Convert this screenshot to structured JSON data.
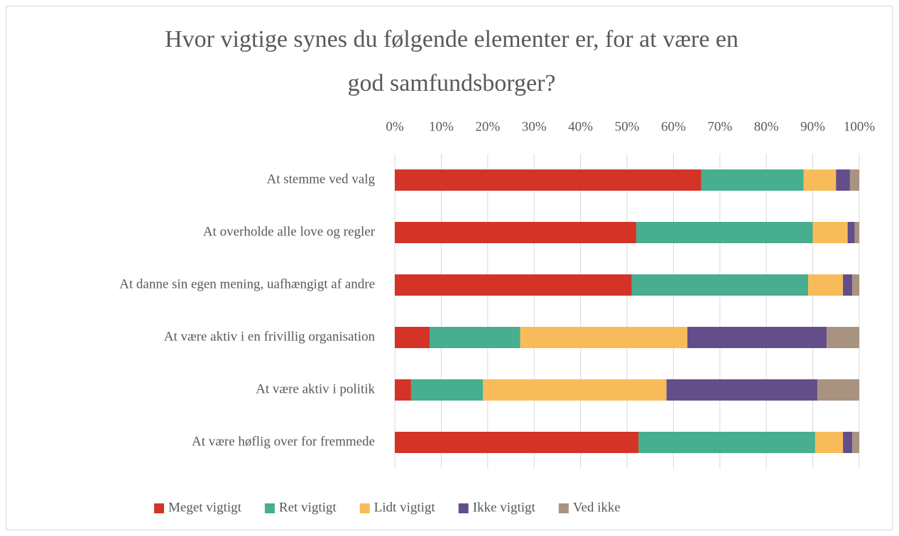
{
  "chart_data": {
    "type": "stacked_barh",
    "title": [
      "Hvor vigtige synes du følgende elementer er, for at være en",
      "god samfundsborger?"
    ],
    "categories": [
      "At stemme ved valg",
      "At overholde alle love og regler",
      "At danne sin egen mening, uafhængigt af andre",
      "At være aktiv i en frivillig organisation",
      "At være aktiv i politik",
      "At være høflig over for fremmede"
    ],
    "series": [
      {
        "name": "Meget vigtigt",
        "color": "#d33427",
        "values": [
          66,
          52,
          51,
          7.5,
          3.5,
          52.5
        ]
      },
      {
        "name": "Ret vigtigt",
        "color": "#47ae8f",
        "values": [
          22,
          38,
          38,
          19.5,
          15.5,
          38
        ]
      },
      {
        "name": "Lidt vigtigt",
        "color": "#f8bb5a",
        "values": [
          7,
          7.5,
          7.5,
          36,
          39.5,
          6
        ]
      },
      {
        "name": "Ikke vigtigt",
        "color": "#634e8a",
        "values": [
          3,
          1.5,
          2,
          30,
          32.5,
          2
        ]
      },
      {
        "name": "Ved ikke",
        "color": "#a89280",
        "values": [
          2,
          1,
          1.5,
          7,
          9,
          1.5
        ]
      }
    ],
    "xlim": [
      0,
      100
    ],
    "xticks": [
      {
        "value": 0,
        "label": "0%"
      },
      {
        "value": 10,
        "label": "10%"
      },
      {
        "value": 20,
        "label": "20%"
      },
      {
        "value": 30,
        "label": "30%"
      },
      {
        "value": 40,
        "label": "40%"
      },
      {
        "value": 50,
        "label": "50%"
      },
      {
        "value": 60,
        "label": "60%"
      },
      {
        "value": 70,
        "label": "70%"
      },
      {
        "value": 80,
        "label": "80%"
      },
      {
        "value": 90,
        "label": "90%"
      },
      {
        "value": 100,
        "label": "100%"
      }
    ],
    "grid": true,
    "legend": "bottom"
  }
}
